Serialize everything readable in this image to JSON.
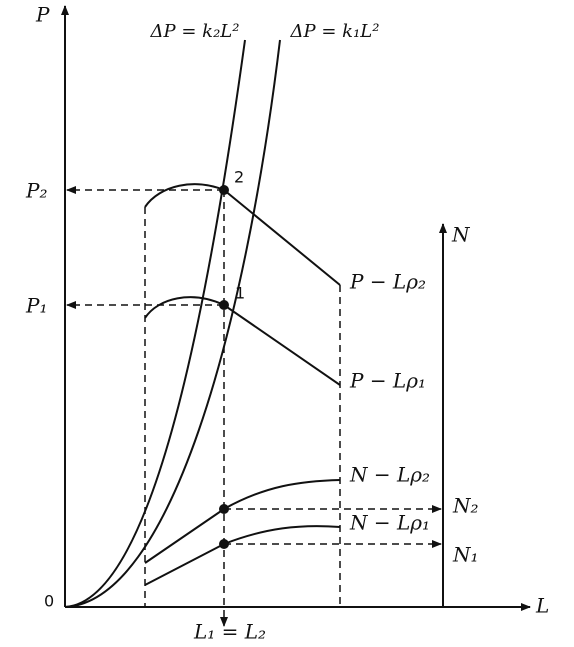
{
  "axes": {
    "p": "P",
    "l": "L",
    "n": "N",
    "origin": "0"
  },
  "curves": {
    "k2": "ΔP = k₂L²",
    "k1": "ΔP = k₁L²",
    "p_rho2": "P − Lρ₂",
    "p_rho1": "P − Lρ₁",
    "n_rho2": "N − Lρ₂",
    "n_rho1": "N − Lρ₁"
  },
  "levels": {
    "p2": "P₂",
    "p1": "P₁",
    "n2": "N₂",
    "n1": "N₁",
    "l": "L₁ = L₂"
  },
  "points": {
    "upper": "2",
    "lower": "1"
  }
}
